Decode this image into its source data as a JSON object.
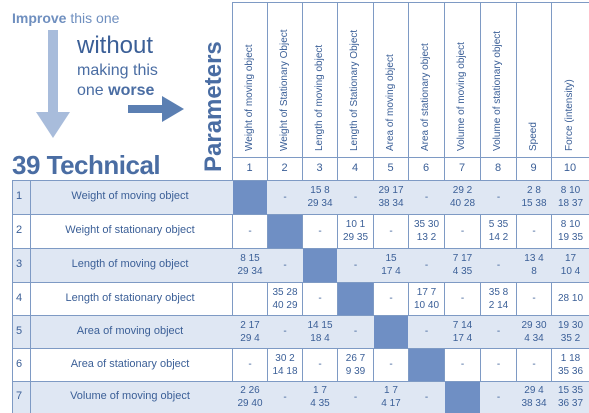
{
  "header": {
    "improve_bold": "Improve",
    "improve_rest": " this one",
    "without": "without",
    "making": "making this",
    "one": "one ",
    "worse": "worse",
    "title": "39 Technical",
    "params": "Parameters"
  },
  "columns": [
    {
      "num": "1",
      "label": "Weight of moving object"
    },
    {
      "num": "2",
      "label": "Weight of Stationary Object"
    },
    {
      "num": "3",
      "label": "Length of moving object"
    },
    {
      "num": "4",
      "label": "Length of Stationary Object"
    },
    {
      "num": "5",
      "label": "Area of moving object"
    },
    {
      "num": "6",
      "label": "Area of stationary object"
    },
    {
      "num": "7",
      "label": "Volume of moving object"
    },
    {
      "num": "8",
      "label": "Volume of stationary object"
    },
    {
      "num": "9",
      "label": "Speed"
    },
    {
      "num": "10",
      "label": "Force (intensity)"
    }
  ],
  "rows": [
    {
      "num": "1",
      "label": "Weight of moving object",
      "cells": [
        "#",
        "-",
        "15 8|29 34",
        "-",
        "29 17|38 34",
        "-",
        "29 2|40 28",
        "-",
        "2  8|15 38",
        "8 10|18 37"
      ]
    },
    {
      "num": "2",
      "label": "Weight of stationary object",
      "cells": [
        "-",
        "#",
        "-",
        "10 1|29 35",
        "-",
        "35 30|13 2",
        "-",
        "5 35|14 2",
        "-",
        "8 10|19 35"
      ]
    },
    {
      "num": "3",
      "label": "Length of moving object",
      "cells": [
        "8 15|29 34",
        "-",
        "#",
        "-",
        "15|17 4",
        "-",
        "7 17|4 35",
        "-",
        "13 4|8",
        "17|10 4"
      ]
    },
    {
      "num": "4",
      "label": "Length of stationary object",
      "cells": [
        "",
        "35 28|40 29",
        "-",
        "#",
        "-",
        "17 7|10 40",
        "-",
        "35 8|2 14",
        "-",
        "28  10"
      ]
    },
    {
      "num": "5",
      "label": "Area of moving object",
      "cells": [
        "2 17|29 4",
        "-",
        "14 15|18 4",
        "-",
        "#",
        "-",
        "7 14|17 4",
        "-",
        "29 30|4 34",
        "19 30|35 2"
      ]
    },
    {
      "num": "6",
      "label": "Area of stationary object",
      "cells": [
        "-",
        "30 2|14 18",
        "-",
        "26 7|9 39",
        "-",
        "#",
        "-",
        "-",
        "-",
        "1 18|35 36"
      ]
    },
    {
      "num": "7",
      "label": "Volume of moving object",
      "cells": [
        "2 26|29 40",
        "-",
        "1  7|4  35",
        "-",
        "1 7|4 17",
        "-",
        "#",
        "-",
        "29 4|38 34",
        "15 35|36 37"
      ]
    }
  ],
  "colors": {
    "accent": "#4a6da3",
    "band": "#dfe7f3",
    "block": "#6f8fc4"
  }
}
